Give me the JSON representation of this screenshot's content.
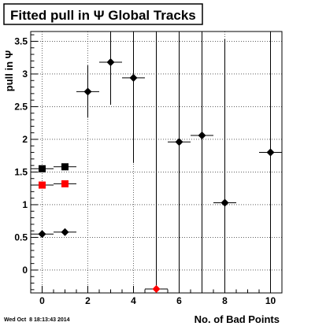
{
  "chart_data": {
    "type": "scatter",
    "title": "Fitted pull in Ψ   Global Tracks",
    "ylabel": "pull in Ψ",
    "xlabel": "No. of Bad Points",
    "timestamp": "Wed Oct  8 18:13:43 2014",
    "xlim": [
      -0.5,
      10.5
    ],
    "ylim": [
      -0.35,
      3.65
    ],
    "grid": true,
    "x_ticks": [
      0,
      2,
      4,
      6,
      8,
      10
    ],
    "y_ticks": [
      0,
      0.5,
      1,
      1.5,
      2,
      2.5,
      3,
      3.5
    ],
    "x_tick_labels": [
      "0",
      "2",
      "4",
      "6",
      "8",
      "10"
    ],
    "y_tick_labels": [
      "0",
      "0.5",
      "1",
      "1.5",
      "2",
      "2.5",
      "3",
      "3.5"
    ],
    "series": [
      {
        "marker": "diamond",
        "color": "#000000",
        "points": [
          {
            "x": 0,
            "y": 0.55,
            "xerr": 0.5,
            "yerr": 0.03
          },
          {
            "x": 1,
            "y": 0.58,
            "xerr": 0.5,
            "yerr": 0.03
          },
          {
            "x": 2,
            "y": 2.73,
            "xerr": 0.5,
            "yerr": 0.4
          },
          {
            "x": 3,
            "y": 3.18,
            "xerr": 0.5,
            "yerr": 0.65
          },
          {
            "x": 4,
            "y": 2.94,
            "xerr": 0.5,
            "yerr": 1.3
          },
          {
            "x": 6,
            "y": 1.96,
            "xerr": 0.5,
            "yerr": 2.5
          },
          {
            "x": 7,
            "y": 2.06,
            "xerr": 0.5,
            "yerr": 2.5
          },
          {
            "x": 8,
            "y": 1.03,
            "xerr": 0.5,
            "yerr": 2.5
          },
          {
            "x": 10,
            "y": 1.8,
            "xerr": 0.5,
            "yerr": 2.5
          }
        ]
      },
      {
        "marker": "diamond",
        "color": "#ff0000",
        "points": [
          {
            "x": 5,
            "y": -0.29,
            "xerr": 0.5,
            "yerr": 4.0
          }
        ]
      },
      {
        "marker": "square",
        "color": "#000000",
        "points": [
          {
            "x": 0,
            "y": 1.55,
            "xerr": 0.5,
            "yerr": 0.03
          },
          {
            "x": 1,
            "y": 1.58,
            "xerr": 0.5,
            "yerr": 0.03
          }
        ]
      },
      {
        "marker": "square",
        "color": "#ff0000",
        "points": [
          {
            "x": 0,
            "y": 1.3,
            "xerr": 0.5,
            "yerr": 0.03
          },
          {
            "x": 1,
            "y": 1.32,
            "xerr": 0.5,
            "yerr": 0.03
          }
        ]
      }
    ]
  }
}
